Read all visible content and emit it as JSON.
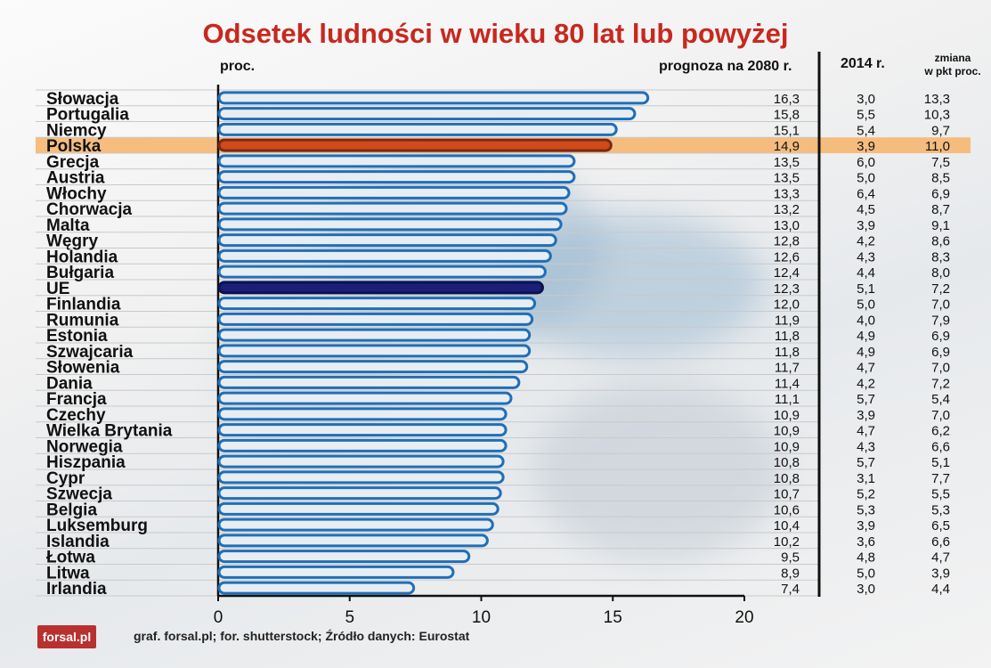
{
  "chart_data": {
    "type": "bar",
    "orientation": "horizontal",
    "title": "Odsetek ludności w wieku 80 lat lub powyżej",
    "unit_label": "proc.",
    "column_headers": {
      "forecast": "prognoza na 2080 r.",
      "year_2014": "2014 r.",
      "change_line1": "zmiana",
      "change_line2": "w pkt proc."
    },
    "xlim": [
      0,
      20
    ],
    "xticks": [
      0,
      5,
      10,
      15,
      20
    ],
    "grid": true,
    "highlight": {
      "Polska": "#d04a1c",
      "UE": "#1a1f7a"
    },
    "highlight_band_color": "#f7b36a",
    "default_bar_stroke": "#1f6fb8",
    "categories": [
      "Słowacja",
      "Portugalia",
      "Niemcy",
      "Polska",
      "Grecja",
      "Austria",
      "Włochy",
      "Chorwacja",
      "Malta",
      "Węgry",
      "Holandia",
      "Bułgaria",
      "UE",
      "Finlandia",
      "Rumunia",
      "Estonia",
      "Szwajcaria",
      "Słowenia",
      "Dania",
      "Francja",
      "Czechy",
      "Wielka Brytania",
      "Norwegia",
      "Hiszpania",
      "Cypr",
      "Szwecja",
      "Belgia",
      "Luksemburg",
      "Islandia",
      "Łotwa",
      "Litwa",
      "Irlandia"
    ],
    "values": [
      16.3,
      15.8,
      15.1,
      14.9,
      13.5,
      13.5,
      13.3,
      13.2,
      13.0,
      12.8,
      12.6,
      12.4,
      12.3,
      12.0,
      11.9,
      11.8,
      11.8,
      11.7,
      11.4,
      11.1,
      10.9,
      10.9,
      10.9,
      10.8,
      10.8,
      10.7,
      10.6,
      10.4,
      10.2,
      9.5,
      8.9,
      7.4
    ],
    "forecast_labels": [
      "16,3",
      "15,8",
      "15,1",
      "14,9",
      "13,5",
      "13,5",
      "13,3",
      "13,2",
      "13,0",
      "12,8",
      "12,6",
      "12,4",
      "12,3",
      "12,0",
      "11,9",
      "11,8",
      "11,8",
      "11,7",
      "11,4",
      "11,1",
      "10,9",
      "10,9",
      "10,9",
      "10,8",
      "10,8",
      "10,7",
      "10,6",
      "10,4",
      "10,2",
      "9,5",
      "8,9",
      "7,4"
    ],
    "values_2014": [
      "3,0",
      "5,5",
      "5,4",
      "3,9",
      "6,0",
      "5,0",
      "6,4",
      "4,5",
      "3,9",
      "4,2",
      "4,3",
      "4,4",
      "5,1",
      "5,0",
      "4,0",
      "4,9",
      "4,9",
      "4,7",
      "4,2",
      "5,7",
      "3,9",
      "4,7",
      "4,3",
      "5,7",
      "3,1",
      "5,2",
      "5,3",
      "3,9",
      "3,6",
      "4,8",
      "5,0",
      "3,0"
    ],
    "change_pp": [
      "13,3",
      "10,3",
      "9,7",
      "11,0",
      "7,5",
      "8,5",
      "6,9",
      "8,7",
      "9,1",
      "8,6",
      "8,3",
      "8,0",
      "7,2",
      "7,0",
      "7,9",
      "6,9",
      "6,9",
      "7,0",
      "7,2",
      "5,4",
      "7,0",
      "6,2",
      "6,6",
      "5,1",
      "7,7",
      "5,5",
      "5,3",
      "6,5",
      "6,6",
      "4,7",
      "3,9",
      "4,4"
    ]
  },
  "footer": {
    "logo_text": "forsal.pl",
    "source": "graf. forsal.pl; for. shutterstock;  Źródło danych:  Eurostat"
  }
}
